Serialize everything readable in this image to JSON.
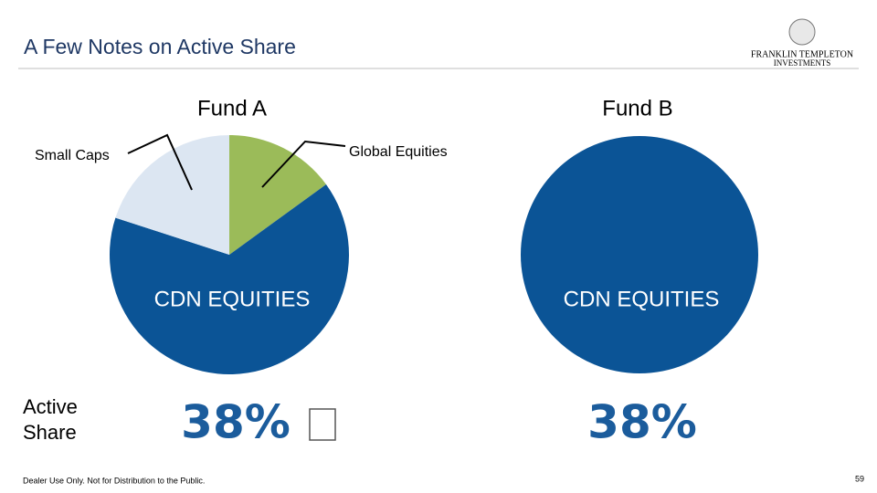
{
  "slide": {
    "title": "A Few Notes on Active Share",
    "logo_line1": "FRANKLIN TEMPLETON",
    "logo_line2": "INVESTMENTS",
    "active_share_label": "Active Share",
    "fund_a_active_share": "38%",
    "fund_b_active_share": "38%",
    "footer": "Dealer Use Only. Not for Distribution to the Public.",
    "page_number": "59"
  },
  "chart_data": [
    {
      "type": "pie",
      "title": "Fund A",
      "categories": [
        "Global Equities",
        "CDN EQUITIES",
        "Small Caps"
      ],
      "values": [
        15,
        65,
        20
      ],
      "colors": [
        "#9bbb59",
        "#0b5496",
        "#dce6f2"
      ]
    },
    {
      "type": "pie",
      "title": "Fund B",
      "categories": [
        "CDN EQUITIES"
      ],
      "values": [
        100
      ],
      "colors": [
        "#0b5496"
      ]
    }
  ]
}
